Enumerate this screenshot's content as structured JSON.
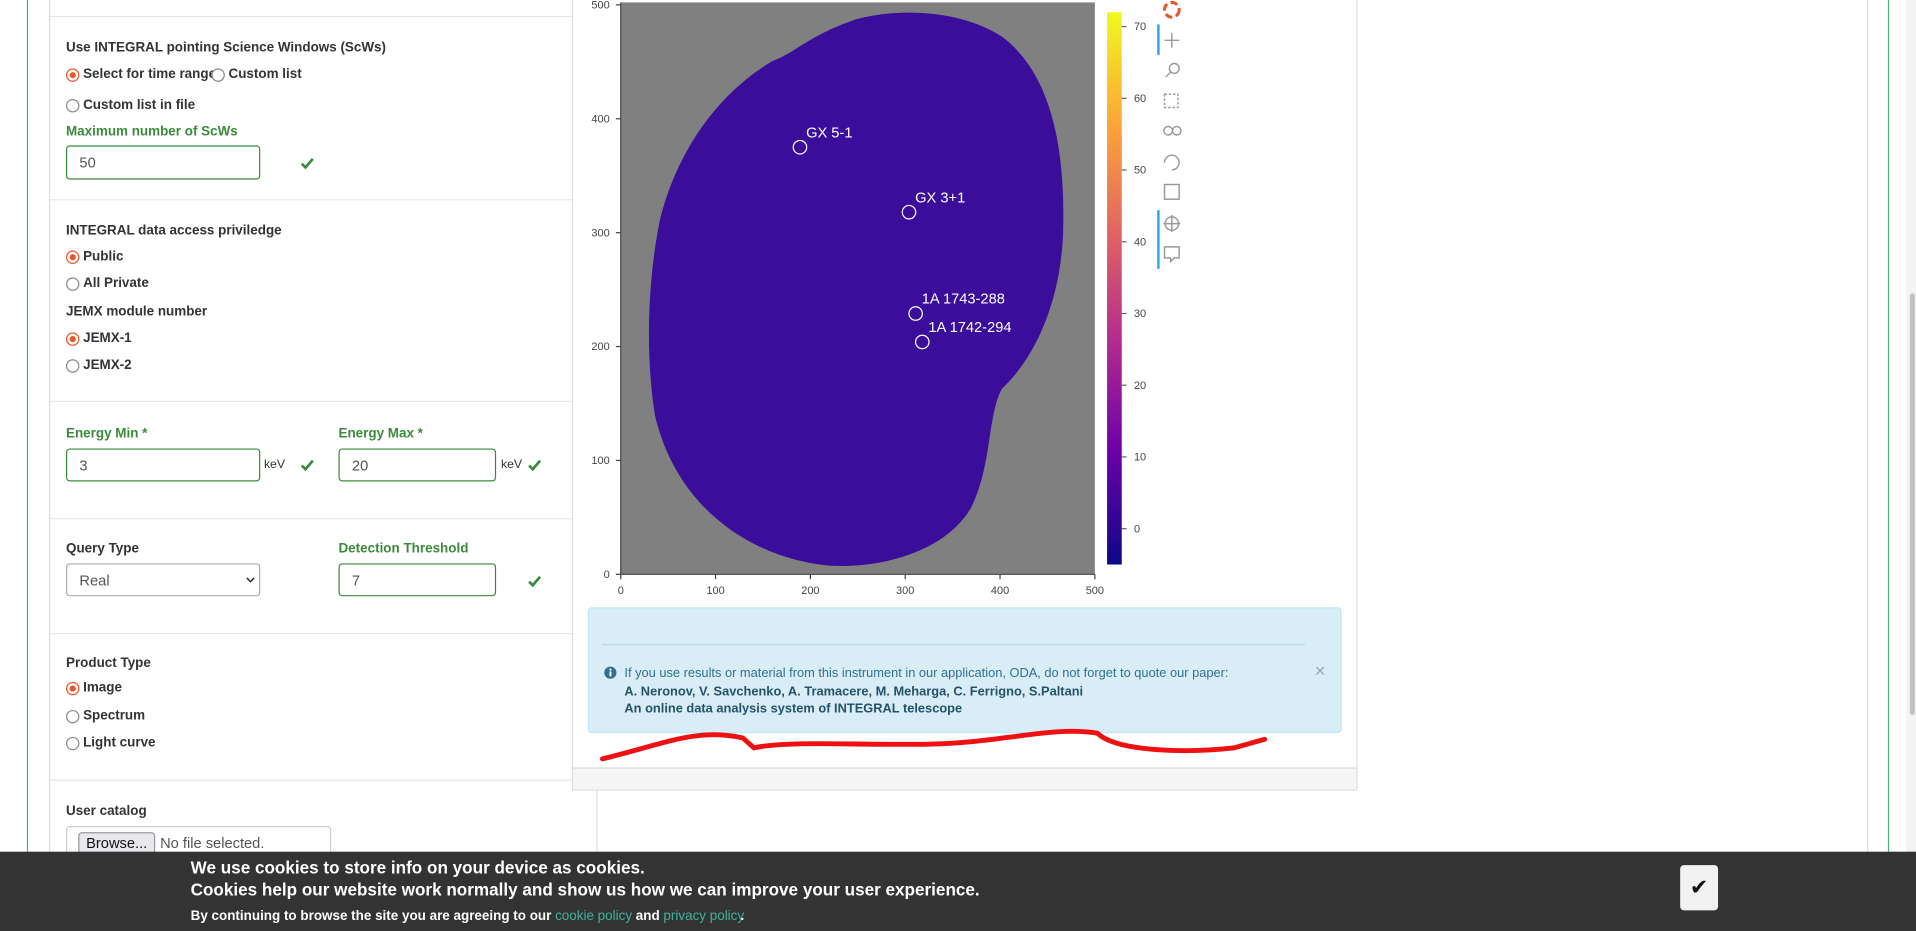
{
  "form": {
    "scw": {
      "label": "Use INTEGRAL pointing Science Windows (ScWs)",
      "options": [
        "Select for time range",
        "Custom list",
        "Custom list in file"
      ],
      "selected": 0
    },
    "max_scw_label": "Maximum number of ScWs",
    "max_scw_value": "50",
    "access": {
      "label": "INTEGRAL data access priviledge",
      "options": [
        "Public",
        "All Private"
      ],
      "selected": 0
    },
    "jemx": {
      "label": "JEMX module number",
      "options": [
        "JEMX-1",
        "JEMX-2"
      ],
      "selected": 0
    },
    "emin_label": "Energy Min *",
    "emin_value": "3",
    "emin_unit": "keV",
    "emax_label": "Energy Max *",
    "emax_value": "20",
    "emax_unit": "keV",
    "query_label": "Query Type",
    "query_value": "Real",
    "threshold_label": "Detection Threshold",
    "threshold_value": "7",
    "product": {
      "label": "Product Type",
      "options": [
        "Image",
        "Spectrum",
        "Light curve"
      ],
      "selected": 0
    },
    "catalog_label": "User catalog",
    "browse_button": "Browse...",
    "file_status": "No file selected."
  },
  "chart_data": {
    "type": "image",
    "xlim": [
      0,
      500
    ],
    "xticks": [
      0,
      100,
      200,
      300,
      400,
      500
    ],
    "ylim": [
      0,
      500
    ],
    "yticks": [
      0,
      100,
      200,
      300,
      400,
      500
    ],
    "sources": [
      {
        "name": "GX 5-1",
        "x": 189,
        "y": 375
      },
      {
        "name": "GX 3+1",
        "x": 304,
        "y": 318
      },
      {
        "name": "1A 1743-288",
        "x": 311,
        "y": 229
      },
      {
        "name": "1A 1742-294",
        "x": 318,
        "y": 204
      }
    ],
    "colorbar_lim": [
      -5,
      72
    ],
    "colorbar_ticks": [
      0,
      10,
      20,
      30,
      40,
      50,
      60,
      70
    ],
    "colormap": [
      "#0d0887",
      "#6a00a8",
      "#b12a90",
      "#e16462",
      "#fca636",
      "#f0f921"
    ]
  },
  "notice": {
    "text": "If you use results or material from this instrument in our application, ODA, do not forget to quote our paper:",
    "authors": "A. Neronov, V. Savchenko, A. Tramacere, M. Meharga, C. Ferrigno, S.Paltani",
    "paper": "An online data analysis system of INTEGRAL telescope",
    "close": "×"
  },
  "cookies": {
    "line1": "We use cookies to store info on your device as cookies.",
    "line2": "Cookies help our website work normally and show us how we can improve your user experience.",
    "line3": "By continuing to browse the site you are agreeing to our",
    "cookie_link": "cookie policy",
    "and": "and",
    "privacy_link": "privacy policy",
    "end": ".",
    "accept": "✔"
  }
}
